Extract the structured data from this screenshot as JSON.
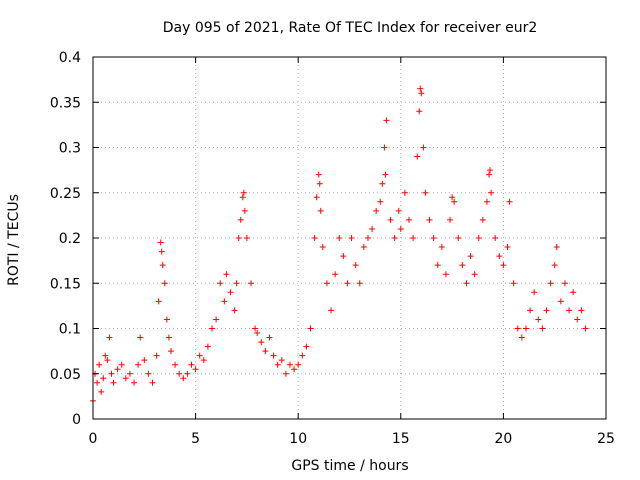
{
  "chart_data": {
    "type": "scatter",
    "title": "Day 095 of 2021, Rate Of TEC Index for receiver eur2",
    "xlabel": "GPS time / hours",
    "ylabel": "ROTI / TECUs",
    "xlim": [
      0,
      25
    ],
    "ylim": [
      0,
      0.4
    ],
    "xticks": [
      0,
      5,
      10,
      15,
      20,
      25
    ],
    "xtick_labels": [
      "0",
      "5",
      "10",
      "15",
      "20",
      "25"
    ],
    "yticks": [
      0,
      0.05,
      0.1,
      0.15,
      0.2,
      0.25,
      0.3,
      0.35,
      0.4
    ],
    "ytick_labels": [
      "0",
      "0.05",
      "0.1",
      "0.15",
      "0.2",
      "0.25",
      "0.3",
      "0.35",
      "0.4"
    ],
    "grid": true,
    "legend": "none",
    "marker": "plus",
    "color": "#ff0000",
    "series": [
      {
        "values": [
          [
            0.0,
            0.02
          ],
          [
            0.1,
            0.05
          ],
          [
            0.2,
            0.04
          ],
          [
            0.3,
            0.06
          ],
          [
            0.4,
            0.03
          ],
          [
            0.5,
            0.045
          ],
          [
            0.6,
            0.07
          ],
          [
            0.7,
            0.065
          ],
          [
            0.8,
            0.09
          ],
          [
            0.9,
            0.05
          ],
          [
            1.0,
            0.04
          ],
          [
            1.2,
            0.055
          ],
          [
            1.4,
            0.06
          ],
          [
            1.6,
            0.045
          ],
          [
            1.8,
            0.05
          ],
          [
            2.0,
            0.04
          ],
          [
            2.2,
            0.06
          ],
          [
            2.3,
            0.09
          ],
          [
            2.5,
            0.065
          ],
          [
            2.7,
            0.05
          ],
          [
            2.9,
            0.04
          ],
          [
            3.1,
            0.07
          ],
          [
            3.2,
            0.13
          ],
          [
            3.3,
            0.195
          ],
          [
            3.35,
            0.185
          ],
          [
            3.4,
            0.17
          ],
          [
            3.5,
            0.15
          ],
          [
            3.6,
            0.11
          ],
          [
            3.7,
            0.09
          ],
          [
            3.8,
            0.075
          ],
          [
            4.0,
            0.06
          ],
          [
            4.2,
            0.05
          ],
          [
            4.4,
            0.045
          ],
          [
            4.6,
            0.05
          ],
          [
            4.8,
            0.06
          ],
          [
            5.0,
            0.055
          ],
          [
            5.2,
            0.07
          ],
          [
            5.4,
            0.065
          ],
          [
            5.6,
            0.08
          ],
          [
            5.8,
            0.1
          ],
          [
            6.0,
            0.11
          ],
          [
            6.2,
            0.15
          ],
          [
            6.4,
            0.13
          ],
          [
            6.5,
            0.16
          ],
          [
            6.7,
            0.14
          ],
          [
            6.9,
            0.12
          ],
          [
            7.0,
            0.15
          ],
          [
            7.1,
            0.2
          ],
          [
            7.2,
            0.22
          ],
          [
            7.3,
            0.245
          ],
          [
            7.35,
            0.25
          ],
          [
            7.4,
            0.23
          ],
          [
            7.5,
            0.2
          ],
          [
            7.7,
            0.15
          ],
          [
            7.9,
            0.1
          ],
          [
            8.0,
            0.095
          ],
          [
            8.2,
            0.085
          ],
          [
            8.4,
            0.075
          ],
          [
            8.6,
            0.09
          ],
          [
            8.8,
            0.07
          ],
          [
            9.0,
            0.06
          ],
          [
            9.2,
            0.065
          ],
          [
            9.4,
            0.05
          ],
          [
            9.6,
            0.06
          ],
          [
            9.8,
            0.055
          ],
          [
            10.0,
            0.06
          ],
          [
            10.2,
            0.07
          ],
          [
            10.4,
            0.08
          ],
          [
            10.6,
            0.1
          ],
          [
            10.8,
            0.2
          ],
          [
            10.9,
            0.245
          ],
          [
            11.0,
            0.27
          ],
          [
            11.05,
            0.26
          ],
          [
            11.1,
            0.23
          ],
          [
            11.2,
            0.19
          ],
          [
            11.4,
            0.15
          ],
          [
            11.6,
            0.12
          ],
          [
            11.8,
            0.16
          ],
          [
            12.0,
            0.2
          ],
          [
            12.2,
            0.18
          ],
          [
            12.4,
            0.15
          ],
          [
            12.6,
            0.2
          ],
          [
            12.8,
            0.17
          ],
          [
            13.0,
            0.15
          ],
          [
            13.2,
            0.19
          ],
          [
            13.4,
            0.2
          ],
          [
            13.6,
            0.21
          ],
          [
            13.8,
            0.23
          ],
          [
            14.0,
            0.24
          ],
          [
            14.1,
            0.26
          ],
          [
            14.2,
            0.3
          ],
          [
            14.25,
            0.27
          ],
          [
            14.3,
            0.33
          ],
          [
            14.5,
            0.22
          ],
          [
            14.7,
            0.2
          ],
          [
            14.9,
            0.23
          ],
          [
            15.0,
            0.21
          ],
          [
            15.2,
            0.25
          ],
          [
            15.4,
            0.22
          ],
          [
            15.6,
            0.2
          ],
          [
            15.8,
            0.29
          ],
          [
            15.9,
            0.34
          ],
          [
            15.95,
            0.365
          ],
          [
            16.0,
            0.36
          ],
          [
            16.1,
            0.3
          ],
          [
            16.2,
            0.25
          ],
          [
            16.4,
            0.22
          ],
          [
            16.6,
            0.2
          ],
          [
            16.8,
            0.17
          ],
          [
            17.0,
            0.19
          ],
          [
            17.2,
            0.16
          ],
          [
            17.4,
            0.22
          ],
          [
            17.5,
            0.245
          ],
          [
            17.6,
            0.24
          ],
          [
            17.8,
            0.2
          ],
          [
            18.0,
            0.17
          ],
          [
            18.2,
            0.15
          ],
          [
            18.4,
            0.18
          ],
          [
            18.6,
            0.16
          ],
          [
            18.8,
            0.2
          ],
          [
            19.0,
            0.22
          ],
          [
            19.2,
            0.24
          ],
          [
            19.3,
            0.27
          ],
          [
            19.35,
            0.275
          ],
          [
            19.4,
            0.25
          ],
          [
            19.6,
            0.2
          ],
          [
            19.8,
            0.18
          ],
          [
            20.0,
            0.17
          ],
          [
            20.2,
            0.19
          ],
          [
            20.3,
            0.24
          ],
          [
            20.5,
            0.15
          ],
          [
            20.7,
            0.1
          ],
          [
            20.9,
            0.09
          ],
          [
            21.1,
            0.1
          ],
          [
            21.3,
            0.12
          ],
          [
            21.5,
            0.14
          ],
          [
            21.7,
            0.11
          ],
          [
            21.9,
            0.1
          ],
          [
            22.1,
            0.12
          ],
          [
            22.3,
            0.15
          ],
          [
            22.5,
            0.17
          ],
          [
            22.6,
            0.19
          ],
          [
            22.8,
            0.13
          ],
          [
            23.0,
            0.15
          ],
          [
            23.2,
            0.12
          ],
          [
            23.4,
            0.14
          ],
          [
            23.6,
            0.11
          ],
          [
            23.8,
            0.12
          ],
          [
            24.0,
            0.1
          ]
        ]
      }
    ]
  }
}
